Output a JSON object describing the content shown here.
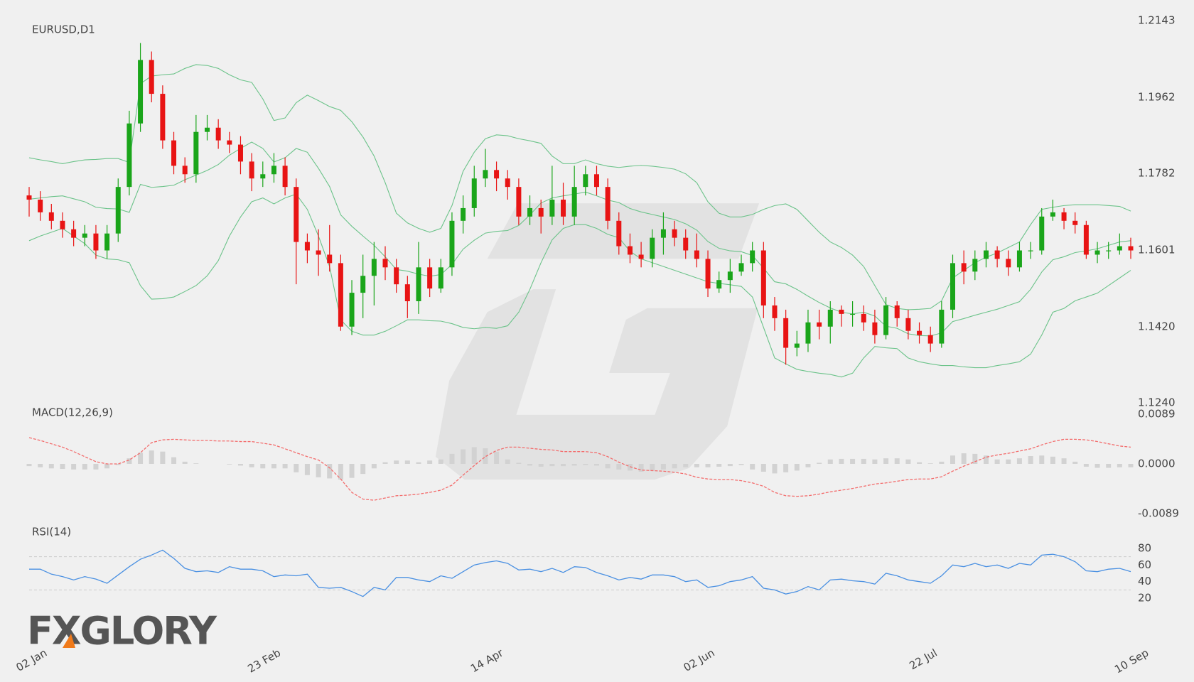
{
  "brand": "FXGLORY",
  "chart_data": [
    {
      "type": "candlestick",
      "title": "EURUSD,D1",
      "categories": [
        "02 Jan",
        null,
        null,
        null,
        null,
        null,
        null,
        null,
        null,
        null,
        null,
        null,
        null,
        null,
        null,
        null,
        null,
        null,
        null,
        null,
        null,
        "23 Feb",
        null,
        null,
        null,
        null,
        null,
        null,
        null,
        null,
        null,
        null,
        null,
        null,
        null,
        null,
        null,
        null,
        null,
        null,
        null,
        "14 Apr",
        null,
        null,
        null,
        null,
        null,
        null,
        null,
        null,
        null,
        null,
        null,
        null,
        null,
        null,
        null,
        null,
        null,
        null,
        "02 Jun",
        null,
        null,
        null,
        null,
        null,
        null,
        null,
        null,
        null,
        null,
        null,
        null,
        null,
        null,
        null,
        null,
        null,
        null,
        null,
        "22 Jul",
        null,
        null,
        null,
        null,
        null,
        null,
        null,
        null,
        null,
        null,
        null,
        null,
        null,
        null,
        null,
        null,
        null,
        null,
        "10 Sep"
      ],
      "open": [
        1.173,
        1.172,
        1.169,
        1.167,
        1.165,
        1.163,
        1.164,
        1.16,
        1.164,
        1.175,
        1.19,
        1.205,
        1.197,
        1.186,
        1.18,
        1.178,
        1.188,
        1.189,
        1.186,
        1.185,
        1.181,
        1.177,
        1.178,
        1.18,
        1.175,
        1.162,
        1.16,
        1.159,
        1.157,
        1.142,
        1.15,
        1.154,
        1.158,
        1.156,
        1.152,
        1.148,
        1.156,
        1.151,
        1.156,
        1.167,
        1.17,
        1.177,
        1.179,
        1.177,
        1.175,
        1.168,
        1.17,
        1.168,
        1.172,
        1.168,
        1.175,
        1.178,
        1.175,
        1.167,
        1.161,
        1.159,
        1.158,
        1.163,
        1.165,
        1.163,
        1.16,
        1.158,
        1.151,
        1.153,
        1.155,
        1.157,
        1.16,
        1.147,
        1.144,
        1.137,
        1.138,
        1.143,
        1.142,
        1.146,
        1.145,
        1.145,
        1.143,
        1.14,
        1.147,
        1.144,
        1.141,
        1.14,
        1.138,
        1.146,
        1.157,
        1.155,
        1.158,
        1.16,
        1.158,
        1.156,
        1.16,
        1.16,
        1.168,
        1.169,
        1.167,
        1.166,
        1.159,
        1.16,
        1.16,
        1.161
      ],
      "high": [
        1.175,
        1.174,
        1.171,
        1.169,
        1.167,
        1.166,
        1.166,
        1.166,
        1.177,
        1.193,
        1.209,
        1.207,
        1.199,
        1.188,
        1.182,
        1.192,
        1.192,
        1.191,
        1.188,
        1.187,
        1.183,
        1.181,
        1.183,
        1.182,
        1.177,
        1.164,
        1.165,
        1.166,
        1.159,
        1.153,
        1.159,
        1.162,
        1.161,
        1.158,
        1.154,
        1.162,
        1.158,
        1.158,
        1.169,
        1.173,
        1.18,
        1.184,
        1.181,
        1.179,
        1.177,
        1.173,
        1.172,
        1.18,
        1.176,
        1.18,
        1.18,
        1.18,
        1.177,
        1.169,
        1.164,
        1.162,
        1.165,
        1.169,
        1.167,
        1.165,
        1.164,
        1.16,
        1.155,
        1.158,
        1.159,
        1.162,
        1.162,
        1.149,
        1.146,
        1.141,
        1.146,
        1.146,
        1.148,
        1.147,
        1.148,
        1.147,
        1.146,
        1.149,
        1.148,
        1.146,
        1.143,
        1.142,
        1.148,
        1.159,
        1.16,
        1.16,
        1.162,
        1.161,
        1.16,
        1.162,
        1.162,
        1.17,
        1.172,
        1.17,
        1.169,
        1.167,
        1.162,
        1.162,
        1.164,
        1.163
      ],
      "low": [
        1.168,
        1.167,
        1.165,
        1.163,
        1.161,
        1.161,
        1.158,
        1.158,
        1.162,
        1.173,
        1.188,
        1.195,
        1.184,
        1.178,
        1.176,
        1.176,
        1.186,
        1.184,
        1.183,
        1.178,
        1.174,
        1.175,
        1.176,
        1.173,
        1.152,
        1.157,
        1.154,
        1.155,
        1.141,
        1.14,
        1.144,
        1.147,
        1.153,
        1.15,
        1.144,
        1.145,
        1.149,
        1.15,
        1.154,
        1.164,
        1.168,
        1.175,
        1.174,
        1.172,
        1.166,
        1.166,
        1.164,
        1.166,
        1.166,
        1.166,
        1.173,
        1.173,
        1.165,
        1.159,
        1.157,
        1.156,
        1.156,
        1.159,
        1.161,
        1.158,
        1.156,
        1.149,
        1.15,
        1.15,
        1.154,
        1.155,
        1.144,
        1.141,
        1.133,
        1.135,
        1.136,
        1.139,
        1.138,
        1.142,
        1.142,
        1.141,
        1.138,
        1.139,
        1.142,
        1.139,
        1.138,
        1.136,
        1.137,
        1.144,
        1.152,
        1.153,
        1.156,
        1.156,
        1.154,
        1.155,
        1.158,
        1.159,
        1.167,
        1.165,
        1.164,
        1.158,
        1.157,
        1.158,
        1.159,
        1.158
      ],
      "close": [
        1.172,
        1.169,
        1.167,
        1.165,
        1.163,
        1.164,
        1.16,
        1.164,
        1.175,
        1.19,
        1.205,
        1.197,
        1.186,
        1.18,
        1.178,
        1.188,
        1.189,
        1.186,
        1.185,
        1.181,
        1.177,
        1.178,
        1.18,
        1.175,
        1.162,
        1.16,
        1.159,
        1.157,
        1.142,
        1.15,
        1.154,
        1.158,
        1.156,
        1.152,
        1.148,
        1.156,
        1.151,
        1.156,
        1.167,
        1.17,
        1.177,
        1.179,
        1.177,
        1.175,
        1.168,
        1.17,
        1.168,
        1.172,
        1.168,
        1.175,
        1.178,
        1.175,
        1.167,
        1.161,
        1.159,
        1.158,
        1.163,
        1.165,
        1.163,
        1.16,
        1.158,
        1.151,
        1.153,
        1.155,
        1.157,
        1.16,
        1.147,
        1.144,
        1.137,
        1.138,
        1.143,
        1.142,
        1.146,
        1.145,
        1.145,
        1.143,
        1.14,
        1.147,
        1.144,
        1.141,
        1.14,
        1.138,
        1.146,
        1.157,
        1.155,
        1.158,
        1.16,
        1.158,
        1.156,
        1.16,
        1.16,
        1.168,
        1.169,
        1.167,
        1.166,
        1.159,
        1.16,
        1.16,
        1.161,
        1.16
      ],
      "upper_band": [
        1.1819,
        1.1814,
        1.181,
        1.1805,
        1.181,
        1.1814,
        1.1815,
        1.1817,
        1.1817,
        1.1808,
        1.1994,
        1.2012,
        1.2015,
        1.2017,
        1.203,
        1.2039,
        1.2037,
        1.203,
        1.2015,
        1.2003,
        1.1997,
        1.1958,
        1.1907,
        1.1913,
        1.1949,
        1.1967,
        1.1954,
        1.194,
        1.1931,
        1.1904,
        1.1868,
        1.1823,
        1.176,
        1.1688,
        1.1665,
        1.1652,
        1.1643,
        1.1652,
        1.1706,
        1.1787,
        1.1832,
        1.1864,
        1.1873,
        1.1871,
        1.1864,
        1.1859,
        1.1853,
        1.1823,
        1.1805,
        1.1805,
        1.1814,
        1.1805,
        1.1799,
        1.1796,
        1.1799,
        1.1801,
        1.1799,
        1.1796,
        1.1792,
        1.1781,
        1.176,
        1.1715,
        1.1688,
        1.1679,
        1.1679,
        1.1685,
        1.1697,
        1.1706,
        1.171,
        1.1697,
        1.167,
        1.1643,
        1.162,
        1.1607,
        1.1589,
        1.1562,
        1.1517,
        1.1472,
        1.1463,
        1.146,
        1.1461,
        1.1463,
        1.1481,
        1.1535,
        1.1553,
        1.1571,
        1.1584,
        1.1594,
        1.1607,
        1.162,
        1.1661,
        1.1697,
        1.1702,
        1.1706,
        1.1708,
        1.1708,
        1.1708,
        1.1706,
        1.1704,
        1.1693
      ],
      "middle_band": [
        1.1721,
        1.1724,
        1.1727,
        1.1729,
        1.1722,
        1.1715,
        1.1702,
        1.1699,
        1.1698,
        1.169,
        1.1756,
        1.1749,
        1.1751,
        1.1754,
        1.1767,
        1.1778,
        1.1789,
        1.1803,
        1.1825,
        1.1841,
        1.1856,
        1.1841,
        1.1809,
        1.1819,
        1.1841,
        1.1832,
        1.1794,
        1.1751,
        1.1684,
        1.1657,
        1.1634,
        1.1612,
        1.1585,
        1.1555,
        1.1551,
        1.1544,
        1.1539,
        1.1543,
        1.1567,
        1.1603,
        1.1624,
        1.1641,
        1.1645,
        1.1647,
        1.1659,
        1.1684,
        1.1712,
        1.1724,
        1.1729,
        1.1733,
        1.1738,
        1.1729,
        1.1719,
        1.1713,
        1.1699,
        1.1691,
        1.1685,
        1.1679,
        1.1673,
        1.1663,
        1.1648,
        1.1621,
        1.1605,
        1.1599,
        1.1597,
        1.1588,
        1.1558,
        1.1526,
        1.1521,
        1.1508,
        1.1492,
        1.1477,
        1.1464,
        1.1454,
        1.145,
        1.1454,
        1.1445,
        1.1421,
        1.1416,
        1.1403,
        1.1399,
        1.1398,
        1.1405,
        1.1432,
        1.1439,
        1.1447,
        1.1454,
        1.1461,
        1.147,
        1.1479,
        1.1508,
        1.1549,
        1.1578,
        1.1585,
        1.1595,
        1.1599,
        1.1604,
        1.1612,
        1.162,
        1.1623
      ],
      "lower_band": [
        1.1623,
        1.1634,
        1.1643,
        1.1652,
        1.1634,
        1.1616,
        1.1589,
        1.158,
        1.1578,
        1.1571,
        1.1517,
        1.1485,
        1.1486,
        1.149,
        1.1503,
        1.1517,
        1.154,
        1.1576,
        1.1634,
        1.1679,
        1.1715,
        1.1724,
        1.171,
        1.1724,
        1.1733,
        1.1697,
        1.1634,
        1.1562,
        1.1436,
        1.1409,
        1.14,
        1.14,
        1.1409,
        1.1422,
        1.1436,
        1.1436,
        1.1434,
        1.1433,
        1.1427,
        1.1418,
        1.1415,
        1.1418,
        1.1416,
        1.1422,
        1.1454,
        1.1508,
        1.1571,
        1.1625,
        1.1652,
        1.1661,
        1.1661,
        1.1652,
        1.1638,
        1.163,
        1.1598,
        1.158,
        1.1571,
        1.1562,
        1.1553,
        1.1544,
        1.1535,
        1.1526,
        1.1522,
        1.1519,
        1.1515,
        1.149,
        1.1418,
        1.1346,
        1.1332,
        1.1319,
        1.1314,
        1.131,
        1.1307,
        1.1301,
        1.131,
        1.1346,
        1.1373,
        1.137,
        1.1368,
        1.1346,
        1.1337,
        1.1332,
        1.1328,
        1.1328,
        1.1325,
        1.1323,
        1.1323,
        1.1328,
        1.1332,
        1.1337,
        1.1355,
        1.14,
        1.1454,
        1.1463,
        1.1481,
        1.149,
        1.1499,
        1.1517,
        1.1535,
        1.1553
      ],
      "up_color": "#1aa51a",
      "down_color": "#e81414",
      "band_color": "#6cc38a",
      "ylim": [
        1.124,
        1.2143
      ],
      "yticks": [
        1.2143,
        1.1962,
        1.1782,
        1.1601,
        {
          "value": 1.142,
          "label": "1.1420"
        },
        {
          "value": 1.124,
          "label": "1.1240"
        }
      ]
    },
    {
      "type": "macd",
      "title": "MACD(12,26,9)",
      "histogram": [
        -0.0004,
        -0.0006,
        -0.0008,
        -0.0009,
        -0.001,
        -0.001,
        -0.001,
        -0.0008,
        -0.0002,
        0.001,
        0.002,
        0.0024,
        0.0022,
        0.0012,
        0.0004,
        0.0001,
        0,
        0,
        -0.0001,
        -0.0003,
        -0.0006,
        -0.0008,
        -0.0008,
        -0.0008,
        -0.0015,
        -0.002,
        -0.0024,
        -0.0026,
        -0.0028,
        -0.0025,
        -0.0018,
        -0.0008,
        0.0003,
        0.0006,
        0.0006,
        0.0003,
        0.0006,
        0.0008,
        0.0018,
        0.0026,
        0.003,
        0.0028,
        0.0022,
        0.0008,
        0.0002,
        -0.0003,
        -0.0005,
        -0.0004,
        -0.0004,
        -0.0003,
        -0.0002,
        -0.0003,
        -0.0008,
        -0.001,
        -0.0012,
        -0.0014,
        -0.0012,
        -0.001,
        -0.0008,
        -0.0006,
        -0.0006,
        -0.0006,
        -0.0005,
        -0.0004,
        -0.0002,
        -0.001,
        -0.0014,
        -0.0017,
        -0.0015,
        -0.0012,
        -0.0006,
        0.0002,
        0.0008,
        0.0009,
        0.0009,
        0.0009,
        0.0008,
        0.001,
        0.001,
        0.0008,
        0.0003,
        0.0001,
        0.0004,
        0.0015,
        0.0019,
        0.0018,
        0.0015,
        0.0008,
        0.0008,
        0.001,
        0.0014,
        0.0015,
        0.0013,
        0.001,
        0.0004,
        -0.0005,
        -0.0007,
        -0.0007,
        -0.0006,
        -0.0006
      ],
      "signal": [
        0.0047,
        0.0042,
        0.0036,
        0.003,
        0.0022,
        0.0013,
        0.0004,
        0,
        0,
        0.0007,
        0.002,
        0.0038,
        0.0043,
        0.0044,
        0.0043,
        0.0042,
        0.0042,
        0.0041,
        0.0041,
        0.004,
        0.004,
        0.0037,
        0.0034,
        0.0027,
        0.002,
        0.0013,
        0.0007,
        -0.0007,
        -0.0027,
        -0.0051,
        -0.0063,
        -0.0065,
        -0.0061,
        -0.0057,
        -0.0056,
        -0.0054,
        -0.0051,
        -0.0047,
        -0.0038,
        -0.002,
        -0.0003,
        0.0013,
        0.0024,
        0.003,
        0.003,
        0.0028,
        0.0026,
        0.0025,
        0.0022,
        0.0022,
        0.0022,
        0.002,
        0.0013,
        0.0003,
        -0.0005,
        -0.0011,
        -0.0012,
        -0.0013,
        -0.0015,
        -0.0018,
        -0.0024,
        -0.0027,
        -0.0028,
        -0.0028,
        -0.003,
        -0.0034,
        -0.004,
        -0.0051,
        -0.0057,
        -0.0058,
        -0.0057,
        -0.0054,
        -0.005,
        -0.0047,
        -0.0044,
        -0.004,
        -0.0036,
        -0.0034,
        -0.0031,
        -0.0028,
        -0.0027,
        -0.0027,
        -0.0023,
        -0.0013,
        -0.0004,
        0.0004,
        0.0012,
        0.0016,
        0.0019,
        0.0023,
        0.0027,
        0.0034,
        0.004,
        0.0044,
        0.0044,
        0.0043,
        0.004,
        0.0036,
        0.0032,
        0.003
      ],
      "histogram_color": "#d2d2d2",
      "signal_color": "#f36c6c",
      "ylim": [
        -0.0089,
        0.0089
      ],
      "yticks": [
        0.0089,
        {
          "value": 0,
          "label": "0.0000"
        },
        -0.0089
      ]
    },
    {
      "type": "line",
      "title": "RSI(14)",
      "values": [
        55,
        55,
        49,
        46,
        42,
        46,
        43,
        38,
        48,
        58,
        67,
        72,
        78,
        68,
        56,
        52,
        53,
        51,
        58,
        55,
        55,
        53,
        46,
        48,
        47,
        49,
        33,
        32,
        33,
        28,
        22,
        33,
        30,
        45,
        45,
        42,
        40,
        47,
        44,
        52,
        60,
        63,
        65,
        62,
        54,
        55,
        52,
        56,
        51,
        58,
        57,
        51,
        47,
        42,
        45,
        43,
        48,
        48,
        46,
        40,
        42,
        33,
        35,
        40,
        42,
        46,
        32,
        30,
        25,
        28,
        34,
        30,
        42,
        43,
        41,
        40,
        37,
        50,
        47,
        42,
        40,
        38,
        47,
        60,
        58,
        62,
        58,
        60,
        56,
        62,
        60,
        72,
        73,
        70,
        64,
        53,
        52,
        55,
        56,
        52
      ],
      "color": "#4a90e2",
      "levels": [
        70,
        30
      ],
      "ylim": [
        20,
        80
      ],
      "yticks": [
        80,
        60,
        40,
        20
      ]
    }
  ]
}
